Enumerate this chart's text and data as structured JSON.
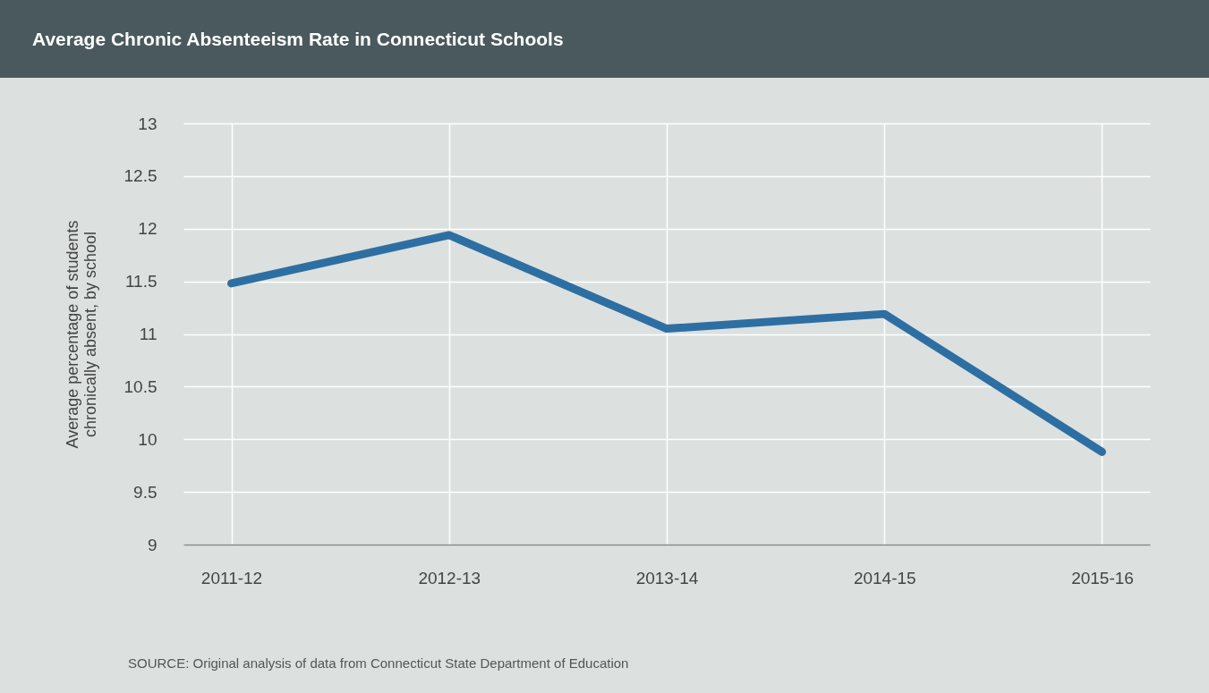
{
  "chart_data": {
    "type": "line",
    "title": "Average Chronic Absenteeism Rate in Connecticut Schools",
    "ylabel": "Average percentage of students\nchronically absent, by school",
    "categories": [
      "2011-12",
      "2012-13",
      "2013-14",
      "2014-15",
      "2015-16"
    ],
    "series": [
      {
        "color": "#2e6fa3",
        "values": [
          11.48,
          11.94,
          11.05,
          11.19,
          9.88
        ]
      }
    ],
    "ylim": [
      9,
      13
    ],
    "yticks": [
      9,
      9.5,
      10,
      10.5,
      11,
      11.5,
      12,
      12.5,
      13
    ],
    "grid": true,
    "marker": "none",
    "line_style": "solid",
    "annotations": [
      "SOURCE: Original analysis of data from Connecticut State Department of Education"
    ]
  }
}
